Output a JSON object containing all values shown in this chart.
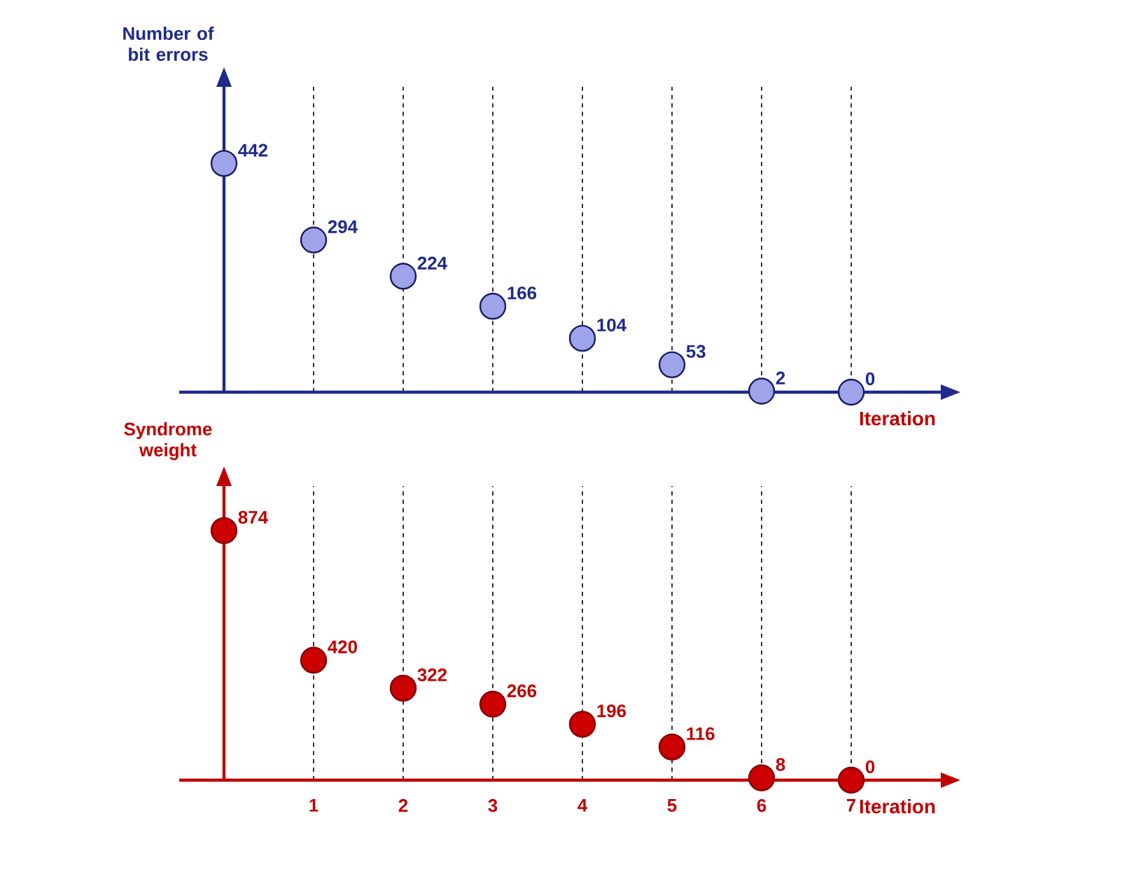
{
  "chart_data": [
    {
      "type": "scatter",
      "ylabel": "Number of bit errors",
      "xlabel": "Iteration",
      "x": [
        0,
        1,
        2,
        3,
        4,
        5,
        6,
        7
      ],
      "xlim": [
        0,
        8
      ],
      "xticks": [
        1,
        2,
        3,
        4,
        5,
        6,
        7
      ],
      "ylim": [
        0,
        590
      ],
      "tick_labels": false,
      "grid": "x",
      "data_labels": true,
      "marker": "circle",
      "series": [
        {
          "color": "#9ea3ea",
          "values": [
            442,
            294,
            224,
            166,
            104,
            53,
            2,
            0
          ]
        }
      ]
    },
    {
      "type": "scatter",
      "ylabel": "Syndrome weight",
      "xlabel": "Iteration",
      "x": [
        0,
        1,
        2,
        3,
        4,
        5,
        6,
        7
      ],
      "xlim": [
        0,
        8
      ],
      "xticks": [
        1,
        2,
        3,
        4,
        5,
        6,
        7
      ],
      "ylim": [
        0,
        1030
      ],
      "tick_labels": "x",
      "grid": "x",
      "data_labels": true,
      "marker": "circle",
      "series": [
        {
          "color": "#cc0000",
          "values": [
            874,
            420,
            322,
            266,
            196,
            116,
            8,
            0
          ]
        }
      ]
    }
  ]
}
